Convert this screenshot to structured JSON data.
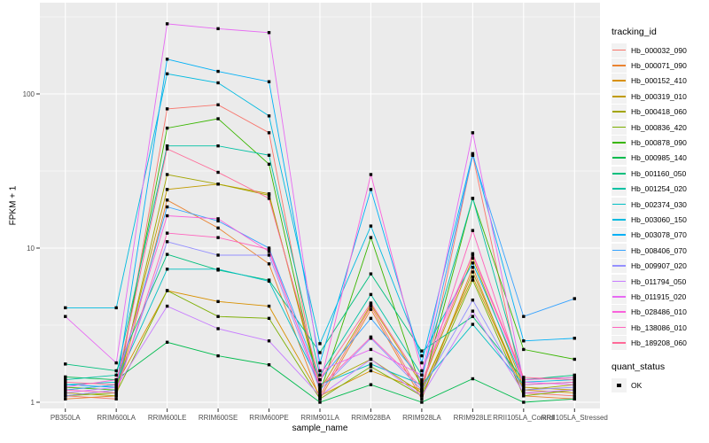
{
  "figure": {
    "background": "#FFFFFF",
    "panel_background": "#EBEBEB",
    "grid_color": "#FFFFFF",
    "tick_color": "#333333",
    "tick_label_color": "#4D4D4D",
    "point_color": "#000000"
  },
  "chart_data": {
    "type": "line",
    "title": "",
    "xlabel": "sample_name",
    "ylabel": "FPKM + 1",
    "y_scale": "log10",
    "y_ticks": [
      1,
      10,
      100
    ],
    "y_minor_gridlines": [
      3.162,
      31.62,
      316.2
    ],
    "ylim": [
      0.9,
      350
    ],
    "grid": true,
    "legend_position": "right",
    "point_shape": "square",
    "categories": [
      "PB350LA",
      "RRIM600LA",
      "RRIM600LE",
      "RRIM600SE",
      "RRIM600PE",
      "RRIM901LA",
      "RRIM928BA",
      "RRIM928LA",
      "RRIM928LE",
      "RRII105LA_Control",
      "RRII105LA_Stressed"
    ],
    "series": [
      {
        "name": "Hb_000032_090",
        "color": "#F8766D",
        "values": [
          1.1,
          1.05,
          80,
          85,
          56,
          1.1,
          4.2,
          1.1,
          40,
          1.15,
          1.1
        ]
      },
      {
        "name": "Hb_000071_090",
        "color": "#EA8331",
        "values": [
          1.05,
          1.1,
          20.5,
          13.5,
          7.9,
          1.05,
          4.0,
          1.05,
          7.5,
          1.1,
          1.05
        ]
      },
      {
        "name": "Hb_000152_410",
        "color": "#D89000",
        "values": [
          1.2,
          1.3,
          5.3,
          4.5,
          4.2,
          1.1,
          1.6,
          1.2,
          6.5,
          1.2,
          1.15
        ]
      },
      {
        "name": "Hb_000319_010",
        "color": "#C09B00",
        "values": [
          1.1,
          1.2,
          24,
          26,
          22.5,
          1.2,
          4.3,
          1.3,
          8.6,
          1.25,
          1.2
        ]
      },
      {
        "name": "Hb_000418_060",
        "color": "#A3A500",
        "values": [
          1.15,
          1.1,
          30,
          26,
          22,
          1.3,
          1.9,
          1.15,
          7.0,
          1.2,
          1.3
        ]
      },
      {
        "name": "Hb_000836_420",
        "color": "#7CAE00",
        "values": [
          1.1,
          1.15,
          5.3,
          3.6,
          3.5,
          1.05,
          1.7,
          1.1,
          6.2,
          1.1,
          1.2
        ]
      },
      {
        "name": "Hb_000878_090",
        "color": "#39B600",
        "values": [
          1.25,
          1.2,
          60,
          69,
          35,
          1.15,
          11.7,
          1.2,
          21,
          2.2,
          1.9
        ]
      },
      {
        "name": "Hb_000985_140",
        "color": "#00BB4E",
        "values": [
          1.46,
          1.4,
          2.45,
          2.0,
          1.75,
          1.0,
          1.3,
          1.0,
          1.42,
          1.0,
          1.05
        ]
      },
      {
        "name": "Hb_001160_050",
        "color": "#00BF7D",
        "values": [
          1.77,
          1.6,
          9.1,
          7.2,
          6.2,
          2.1,
          6.8,
          2.15,
          3.6,
          1.4,
          1.5
        ]
      },
      {
        "name": "Hb_001254_020",
        "color": "#00C1A3",
        "values": [
          1.4,
          1.5,
          46,
          46,
          40,
          1.5,
          5.0,
          1.5,
          21,
          1.4,
          1.45
        ]
      },
      {
        "name": "Hb_002374_030",
        "color": "#00BFC4",
        "values": [
          1.3,
          1.35,
          7.3,
          7.3,
          6.1,
          1.3,
          1.77,
          1.3,
          3.2,
          1.3,
          1.35
        ]
      },
      {
        "name": "Hb_003060_150",
        "color": "#00BAE0",
        "values": [
          4.1,
          4.1,
          135,
          118,
          72,
          2.4,
          13.9,
          2.0,
          8.0,
          1.35,
          1.4
        ]
      },
      {
        "name": "Hb_003078_070",
        "color": "#00B0F6",
        "values": [
          1.3,
          1.25,
          168,
          140,
          120,
          1.8,
          24,
          1.8,
          41,
          2.5,
          2.6
        ]
      },
      {
        "name": "Hb_008406_070",
        "color": "#35A2FF",
        "values": [
          1.2,
          1.3,
          18.5,
          15,
          10,
          1.4,
          3.5,
          1.4,
          40,
          3.6,
          4.7
        ]
      },
      {
        "name": "Hb_009907_020",
        "color": "#9590FF",
        "values": [
          1.1,
          1.2,
          11,
          9.0,
          9.0,
          1.2,
          2.6,
          1.2,
          4.6,
          1.2,
          1.25
        ]
      },
      {
        "name": "Hb_011794_050",
        "color": "#C77CFF",
        "values": [
          1.15,
          1.25,
          4.2,
          3.0,
          2.5,
          1.1,
          1.9,
          1.1,
          3.9,
          1.15,
          1.2
        ]
      },
      {
        "name": "Hb_011915_020",
        "color": "#E76BF3",
        "values": [
          3.6,
          1.8,
          285,
          265,
          250,
          1.6,
          2.2,
          1.5,
          56,
          1.35,
          1.3
        ]
      },
      {
        "name": "Hb_028486_010",
        "color": "#FA62DB",
        "values": [
          1.25,
          1.4,
          16.2,
          15.5,
          9.5,
          1.3,
          30,
          1.6,
          9.0,
          1.4,
          1.45
        ]
      },
      {
        "name": "Hb_138086_010",
        "color": "#FF62BC",
        "values": [
          1.2,
          1.15,
          12.5,
          11.7,
          9.8,
          1.25,
          2.65,
          1.25,
          13,
          1.3,
          1.35
        ]
      },
      {
        "name": "Hb_189208_060",
        "color": "#FF6A98",
        "values": [
          1.35,
          1.3,
          44,
          31,
          21,
          1.4,
          4.4,
          1.35,
          9.2,
          1.45,
          1.4
        ]
      }
    ]
  },
  "legend": {
    "tracking_title": "tracking_id",
    "quant_title": "quant_status",
    "quant_items": [
      {
        "label": "OK",
        "color": "#000000",
        "shape": "square"
      }
    ]
  }
}
